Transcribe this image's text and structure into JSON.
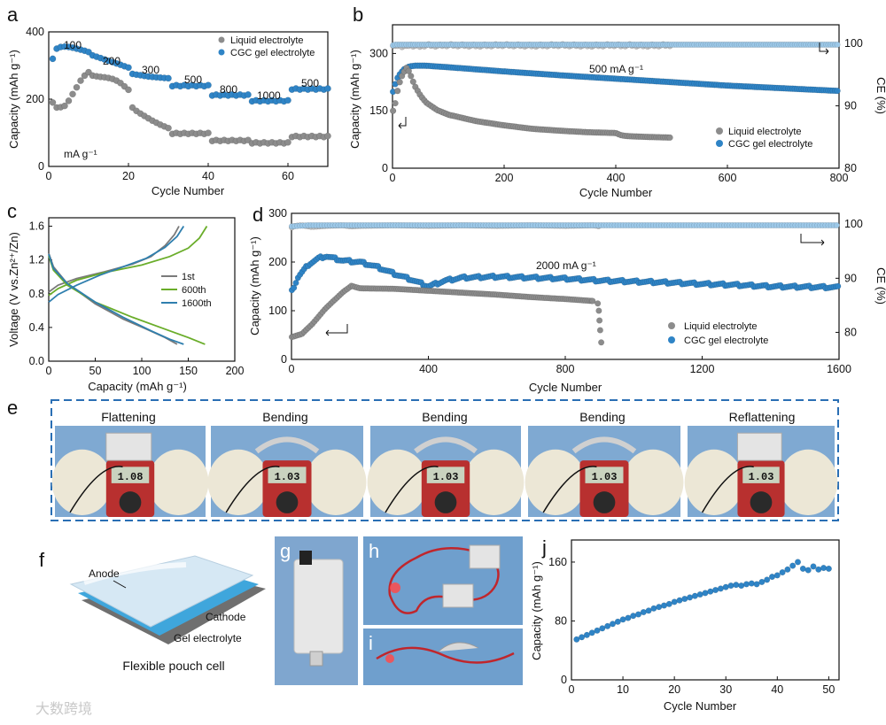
{
  "colors": {
    "liquid": "#8c8c8c",
    "gel": "#2f84c6",
    "curve_1st": "#7a7a7a",
    "curve_600": "#6aad2a",
    "curve_1600": "#2f7fae",
    "photo_blue": "#7fa9d2",
    "dashed_border": "#2a6fb4"
  },
  "panel_letters": {
    "a": "a",
    "b": "b",
    "c": "c",
    "d": "d",
    "e": "e",
    "f": "f",
    "g": "g",
    "h": "h",
    "i": "i",
    "j": "j"
  },
  "panel_e": {
    "titles": [
      "Flattening",
      "Bending",
      "Bending",
      "Bending",
      "Reflattening"
    ],
    "readings": [
      "1.08",
      "1.03",
      "1.03",
      "1.03",
      "1.03"
    ]
  },
  "panel_f": {
    "caption": "Flexible pouch cell",
    "labels": {
      "anode": "Anode",
      "cathode": "Cathode",
      "gel": "Gel electrolyte"
    }
  },
  "watermark": "大数跨境",
  "chart_data": [
    {
      "id": "a",
      "type": "scatter",
      "xlabel": "Cycle Number",
      "ylabel": "Capacity (mAh g⁻¹)",
      "xlim": [
        0,
        70
      ],
      "ylim": [
        0,
        400
      ],
      "xticks": [
        0,
        20,
        40,
        60
      ],
      "yticks": [
        0,
        200,
        400
      ],
      "legend": [
        "Liquid electrolyte",
        "CGC gel electrolyte"
      ],
      "annotations": [
        "100",
        "200",
        "300",
        "500",
        "800",
        "1000",
        "500",
        "mA g⁻¹"
      ],
      "rate_steps": [
        {
          "start": 1,
          "end": 10,
          "liquid": [
            190,
            175,
            176,
            180,
            195,
            215,
            235,
            255,
            270,
            280
          ],
          "gel": [
            320,
            350,
            355,
            356,
            355,
            353,
            350,
            347,
            344,
            340
          ]
        },
        {
          "start": 11,
          "end": 20,
          "liquid": [
            270,
            268,
            266,
            265,
            263,
            260,
            255,
            248,
            238,
            228
          ],
          "gel": [
            330,
            326,
            322,
            318,
            314,
            310,
            306,
            302,
            298,
            294
          ]
        },
        {
          "start": 21,
          "end": 30,
          "liquid": [
            175,
            165,
            157,
            150,
            143,
            136,
            130,
            124,
            119,
            114
          ],
          "gel": [
            275,
            273,
            271,
            269,
            267,
            266,
            265,
            264,
            263,
            262
          ]
        },
        {
          "start": 31,
          "end": 40,
          "liquid": 98,
          "gel": 240
        },
        {
          "start": 41,
          "end": 50,
          "liquid": 77,
          "gel": 212
        },
        {
          "start": 51,
          "end": 60,
          "liquid": 70,
          "gel": 195
        },
        {
          "start": 61,
          "end": 70,
          "liquid": 89,
          "gel": 230
        }
      ]
    },
    {
      "id": "b",
      "type": "scatter",
      "xlabel": "Cycle Number",
      "ylabel": "Capacity (mAh g⁻¹)",
      "y2label": "CE (%)",
      "xlim": [
        0,
        800
      ],
      "ylim": [
        0,
        375
      ],
      "y2lim": [
        80,
        103
      ],
      "xticks": [
        0,
        200,
        400,
        600,
        800
      ],
      "yticks": [
        0,
        150,
        300
      ],
      "y2ticks": [
        80,
        90,
        100
      ],
      "annotation": "500 mA g⁻¹",
      "legend": [
        "Liquid electrolyte",
        "CGC gel electrolyte"
      ],
      "series": [
        {
          "name": "Liquid electrolyte",
          "x": [
            1,
            5,
            10,
            15,
            20,
            25,
            30,
            40,
            50,
            60,
            80,
            100,
            150,
            200,
            250,
            300,
            350,
            400,
            410,
            420,
            450,
            500
          ],
          "capacity": [
            150,
            170,
            210,
            235,
            250,
            262,
            252,
            215,
            190,
            172,
            152,
            140,
            123,
            112,
            103,
            98,
            94,
            92,
            86,
            84,
            82,
            80
          ],
          "ce": [
            99.8,
            99.6,
            99.9,
            99.7,
            99.8,
            99.6,
            99.9,
            99.8,
            99.7,
            99.9,
            99.8,
            99.9,
            99.8,
            99.9,
            99.8,
            99.9,
            99.8,
            99.9,
            99.8,
            99.9,
            99.8,
            99.9
          ]
        },
        {
          "name": "CGC gel electrolyte",
          "x": [
            1,
            5,
            10,
            20,
            30,
            40,
            60,
            100,
            200,
            300,
            400,
            500,
            600,
            700,
            800
          ],
          "capacity": [
            200,
            220,
            240,
            258,
            266,
            268,
            268,
            264,
            253,
            243,
            234,
            225,
            216,
            209,
            202
          ],
          "ce": [
            99.9,
            100,
            100,
            100,
            100,
            100,
            100,
            100,
            100,
            100,
            100,
            100,
            100,
            100,
            100
          ]
        }
      ]
    },
    {
      "id": "c",
      "type": "line",
      "xlabel": "Capacity (mAh g⁻¹)",
      "ylabel": "Voltage (V vs.Zn²⁺/Zn)",
      "xlim": [
        0,
        200
      ],
      "ylim": [
        0,
        1.7
      ],
      "xticks": [
        0,
        50,
        100,
        150,
        200
      ],
      "yticks": [
        0.0,
        0.4,
        0.8,
        1.2,
        1.6
      ],
      "legend": [
        "1st",
        "600th",
        "1600th"
      ],
      "series": [
        {
          "name": "1st",
          "charge": [
            [
              0,
              0.82
            ],
            [
              10,
              0.9
            ],
            [
              30,
              0.98
            ],
            [
              60,
              1.06
            ],
            [
              90,
              1.15
            ],
            [
              110,
              1.24
            ],
            [
              125,
              1.37
            ],
            [
              135,
              1.5
            ],
            [
              140,
              1.6
            ]
          ],
          "discharge": [
            [
              0,
              1.28
            ],
            [
              5,
              1.12
            ],
            [
              20,
              0.92
            ],
            [
              50,
              0.68
            ],
            [
              80,
              0.5
            ],
            [
              105,
              0.38
            ],
            [
              125,
              0.28
            ],
            [
              138,
              0.2
            ]
          ]
        },
        {
          "name": "600th",
          "charge": [
            [
              0,
              0.78
            ],
            [
              10,
              0.86
            ],
            [
              30,
              0.96
            ],
            [
              60,
              1.05
            ],
            [
              100,
              1.14
            ],
            [
              130,
              1.24
            ],
            [
              150,
              1.34
            ],
            [
              162,
              1.46
            ],
            [
              170,
              1.6
            ]
          ],
          "discharge": [
            [
              0,
              1.25
            ],
            [
              5,
              1.08
            ],
            [
              20,
              0.9
            ],
            [
              50,
              0.7
            ],
            [
              90,
              0.52
            ],
            [
              125,
              0.38
            ],
            [
              150,
              0.28
            ],
            [
              168,
              0.2
            ]
          ]
        },
        {
          "name": "1600th",
          "charge": [
            [
              0,
              0.7
            ],
            [
              10,
              0.79
            ],
            [
              30,
              0.9
            ],
            [
              55,
              1.02
            ],
            [
              80,
              1.12
            ],
            [
              105,
              1.22
            ],
            [
              125,
              1.35
            ],
            [
              138,
              1.48
            ],
            [
              145,
              1.6
            ]
          ],
          "discharge": [
            [
              0,
              1.27
            ],
            [
              5,
              1.1
            ],
            [
              20,
              0.92
            ],
            [
              50,
              0.7
            ],
            [
              80,
              0.52
            ],
            [
              110,
              0.36
            ],
            [
              130,
              0.26
            ],
            [
              145,
              0.2
            ]
          ]
        }
      ]
    },
    {
      "id": "d",
      "type": "scatter",
      "xlabel": "Cycle Number",
      "ylabel": "Capacity (mAh g⁻¹)",
      "y2label": "CE (%)",
      "xlim": [
        0,
        1600
      ],
      "ylim": [
        0,
        300
      ],
      "y2lim": [
        75,
        102
      ],
      "xticks": [
        0,
        400,
        800,
        1200,
        1600
      ],
      "yticks": [
        0,
        100,
        200,
        300
      ],
      "y2ticks": [
        80,
        90,
        100
      ],
      "annotation": "2000 mA g⁻¹",
      "legend": [
        "Liquid electrolyte",
        "CGC gel electrolyte"
      ],
      "series": [
        {
          "name": "Liquid electrolyte",
          "x": [
            1,
            10,
            30,
            60,
            100,
            150,
            175,
            200,
            300,
            400,
            500,
            600,
            700,
            800,
            880,
            895,
            898,
            900,
            902,
            905
          ],
          "capacity": [
            46,
            48,
            52,
            72,
            105,
            138,
            151,
            146,
            145,
            141,
            137,
            133,
            128,
            124,
            120,
            115,
            100,
            80,
            60,
            35
          ],
          "ce": [
            99.5,
            99.8,
            99.9,
            99.6,
            99.8,
            99.9,
            99.7,
            99.8,
            99.9,
            99.8,
            99.9,
            99.8,
            99.9,
            99.8,
            99.9,
            99.8,
            99.7,
            99.9,
            99.8,
            99.9
          ]
        },
        {
          "name": "CGC gel electrolyte",
          "x": [
            1,
            20,
            50,
            80,
            100,
            150,
            200,
            250,
            300,
            350,
            400,
            450,
            500,
            600,
            700,
            800,
            900,
            1000,
            1100,
            1200,
            1300,
            1400,
            1500,
            1600
          ],
          "capacity": [
            140,
            170,
            195,
            208,
            212,
            203,
            200,
            190,
            176,
            164,
            150,
            162,
            168,
            170,
            168,
            166,
            162,
            160,
            158,
            155,
            153,
            150,
            149,
            148
          ],
          "ce": [
            99.8,
            99.9,
            100,
            100,
            100,
            100,
            100,
            100,
            100,
            100,
            100,
            100,
            100,
            100,
            100,
            100,
            100,
            100,
            100,
            100,
            100,
            100,
            100,
            100
          ]
        }
      ]
    },
    {
      "id": "j",
      "type": "scatter",
      "xlabel": "Cycle Number",
      "ylabel": "Capacity (mAh g⁻¹)",
      "xlim": [
        0,
        52
      ],
      "ylim": [
        0,
        190
      ],
      "xticks": [
        0,
        10,
        20,
        30,
        40,
        50
      ],
      "yticks": [
        0,
        80,
        160
      ],
      "series": [
        {
          "name": "Flexible pouch cell",
          "x": [
            1,
            2,
            3,
            4,
            5,
            6,
            7,
            8,
            9,
            10,
            11,
            12,
            13,
            14,
            15,
            16,
            17,
            18,
            19,
            20,
            21,
            22,
            23,
            24,
            25,
            26,
            27,
            28,
            29,
            30,
            31,
            32,
            33,
            34,
            35,
            36,
            37,
            38,
            39,
            40,
            41,
            42,
            43,
            44,
            45,
            46,
            47,
            48,
            49,
            50
          ],
          "values": [
            55,
            58,
            61,
            64,
            67,
            70,
            73,
            76,
            79,
            82,
            84,
            87,
            89,
            92,
            94,
            97,
            99,
            101,
            103,
            106,
            108,
            110,
            112,
            114,
            116,
            118,
            120,
            122,
            124,
            126,
            128,
            129,
            128,
            130,
            131,
            130,
            133,
            136,
            140,
            142,
            146,
            150,
            155,
            160,
            151,
            149,
            154,
            150,
            152,
            151
          ]
        }
      ]
    }
  ]
}
